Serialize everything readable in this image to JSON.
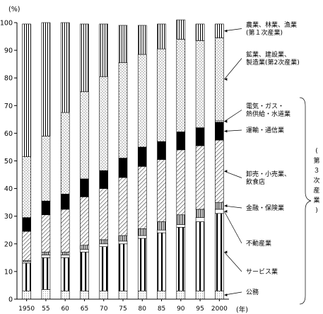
{
  "chart_data": {
    "type": "bar",
    "stacked": true,
    "y_unit": "(%)",
    "x_unit": "(年)",
    "ylim": [
      0,
      100
    ],
    "yticks": [
      0,
      10,
      20,
      30,
      40,
      50,
      60,
      70,
      80,
      90,
      100
    ],
    "categories": [
      "1950",
      "55",
      "60",
      "65",
      "70",
      "75",
      "80",
      "85",
      "90",
      "95",
      "2000"
    ],
    "series": [
      {
        "key": "kobu",
        "name": "公務",
        "pattern": "dots-fine",
        "values": [
          3,
          3.5,
          3,
          3,
          3,
          3,
          3,
          3,
          3,
          3,
          3
        ]
      },
      {
        "key": "service",
        "name": "サービス業",
        "pattern": "vstripe",
        "values": [
          10,
          11.5,
          12,
          14,
          16,
          17,
          19,
          21,
          23,
          25,
          28
        ]
      },
      {
        "key": "fudosan",
        "name": "不動産業",
        "pattern": "white",
        "values": [
          0.5,
          1,
          1,
          1,
          1,
          1,
          1,
          1,
          1,
          1.5,
          1.5
        ]
      },
      {
        "key": "kinyu",
        "name": "金融・保険業",
        "pattern": "vstripe-wide",
        "values": [
          0.5,
          1,
          1,
          1.5,
          1.5,
          2,
          2.5,
          3,
          3.5,
          3,
          2.5
        ]
      },
      {
        "key": "oroshi",
        "name": "卸売・小売業、飲食店",
        "pattern": "diag",
        "values": [
          10.5,
          13.5,
          15.5,
          17.5,
          18.5,
          21,
          22.5,
          22.5,
          23.5,
          23,
          22.5
        ]
      },
      {
        "key": "unyu",
        "name": "運輸・通信業",
        "pattern": "black",
        "values": [
          5,
          5,
          5.5,
          6.5,
          6.5,
          7,
          7,
          6.5,
          6.5,
          6.5,
          6.5
        ]
      },
      {
        "key": "denki",
        "name": "電気・ガス・熱供給・水道業",
        "pattern": "dots-fine",
        "values": [
          0,
          0,
          0,
          0,
          0,
          0,
          0,
          0,
          0,
          0,
          0.5
        ]
      },
      {
        "key": "dai2",
        "name": "鉱業、建設業、製造業(第2次産業)",
        "pattern": "dots",
        "values": [
          22,
          23.5,
          29.5,
          31.5,
          34,
          34.5,
          33.5,
          33.5,
          33.5,
          31.5,
          30
        ]
      },
      {
        "key": "dai1",
        "name": "農業、林業、漁業(第1次産業)",
        "pattern": "vlines",
        "values": [
          48,
          41,
          32.5,
          24.5,
          19,
          13.5,
          10.5,
          9,
          7,
          6,
          5
        ]
      }
    ],
    "annotations": [
      {
        "key": "dai1",
        "lines": [
          "農業、林業、漁業",
          "(第１次産業)"
        ]
      },
      {
        "key": "dai2",
        "lines": [
          "鉱業、建設業、",
          "製造業(第2次産業)"
        ]
      },
      {
        "key": "denki",
        "lines": [
          "電気・ガス・",
          "熱供給・水道業"
        ]
      },
      {
        "key": "unyu",
        "lines": [
          "運輸・通信業"
        ]
      },
      {
        "key": "oroshi",
        "lines": [
          "卸売・小売業、",
          "飲食店"
        ]
      },
      {
        "key": "kinyu",
        "lines": [
          "金融・保険業"
        ]
      },
      {
        "key": "fudosan",
        "lines": [
          "不動産業"
        ]
      },
      {
        "key": "service",
        "lines": [
          "サービス業"
        ]
      },
      {
        "key": "kobu",
        "lines": [
          "公務"
        ]
      }
    ],
    "bracket_label": [
      "(",
      "第",
      "３",
      "次",
      "産",
      "業",
      ")"
    ]
  }
}
